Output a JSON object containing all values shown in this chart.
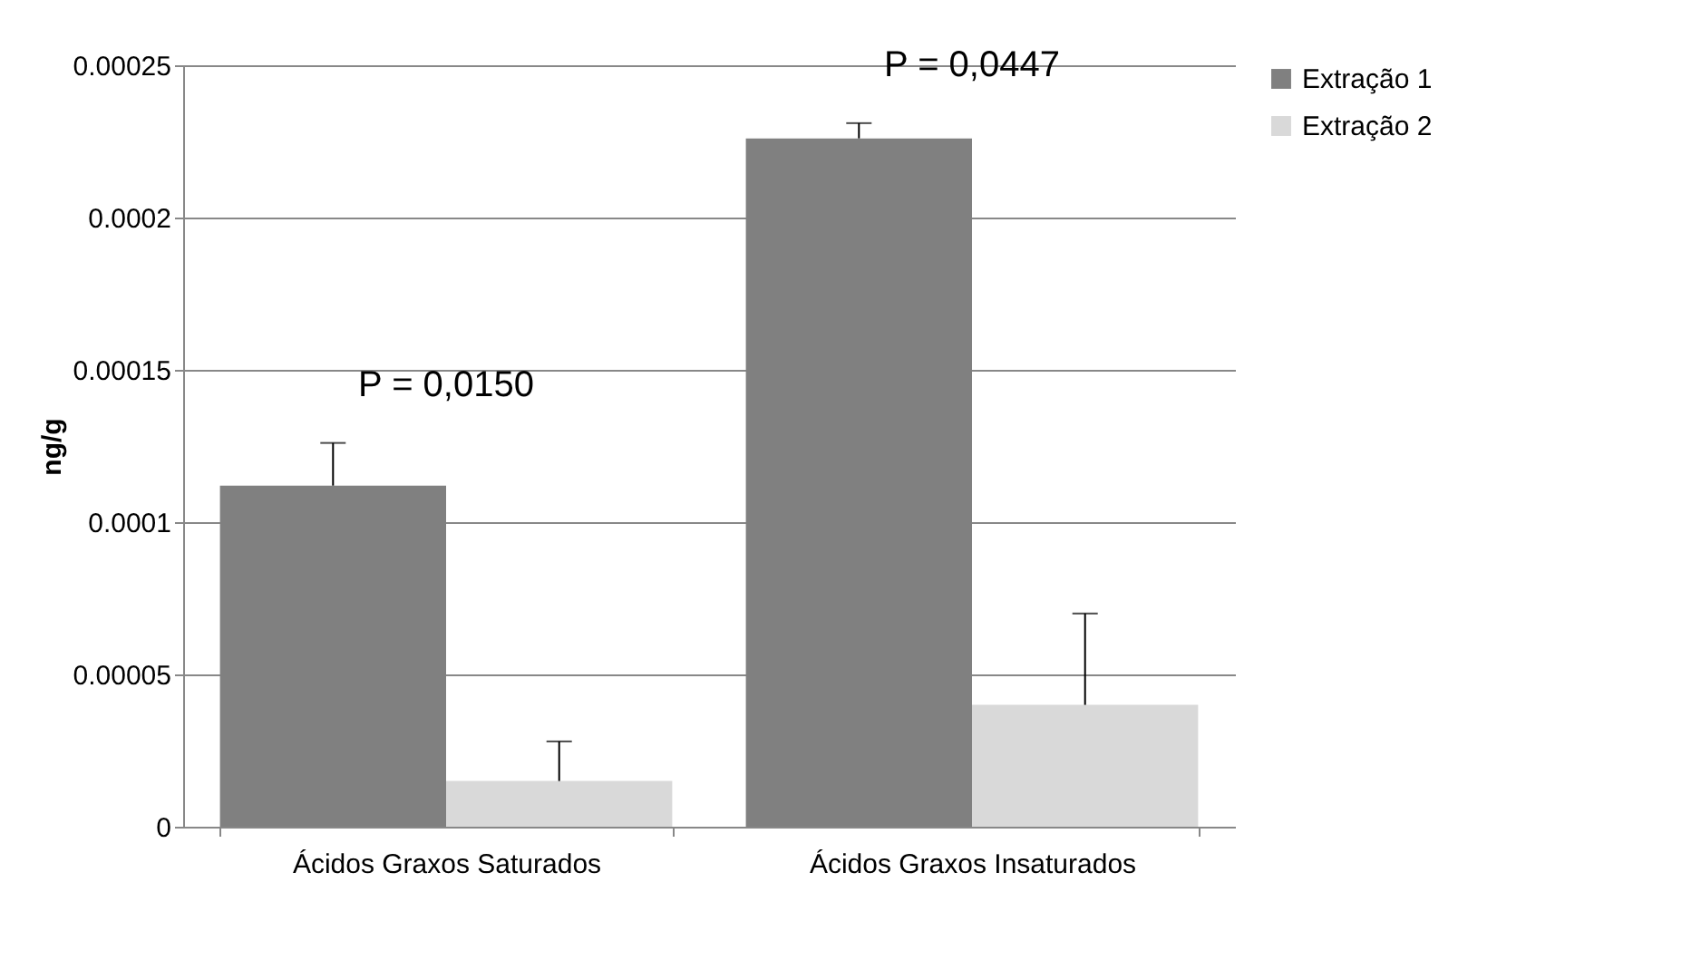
{
  "chart_data": {
    "type": "bar",
    "ylabel": "ng/g",
    "categories": [
      "Ácidos Graxos Saturados",
      "Ácidos Graxos Insaturados"
    ],
    "series": [
      {
        "name": "Extração 1",
        "color": "#808080",
        "values": [
          0.000112,
          0.000226
        ],
        "errors": [
          [
            0.000112,
            0.000126
          ],
          [
            0.000226,
            0.000231
          ]
        ]
      },
      {
        "name": "Extração 2",
        "color": "#d9d9d9",
        "values": [
          1.5e-05,
          4e-05
        ],
        "errors": [
          [
            1.5e-05,
            2.8e-05
          ],
          [
            4e-05,
            7e-05
          ]
        ]
      }
    ],
    "ylim": [
      0,
      0.00025
    ],
    "yticks": [
      0,
      {
        "value": 5e-05,
        "label": "0.00005"
      },
      0.0001,
      0.00015,
      0.0002,
      0.00025
    ],
    "grid": "y",
    "legend": "right",
    "annotations": [
      "P = 0,0150",
      "P = 0,0447"
    ]
  }
}
